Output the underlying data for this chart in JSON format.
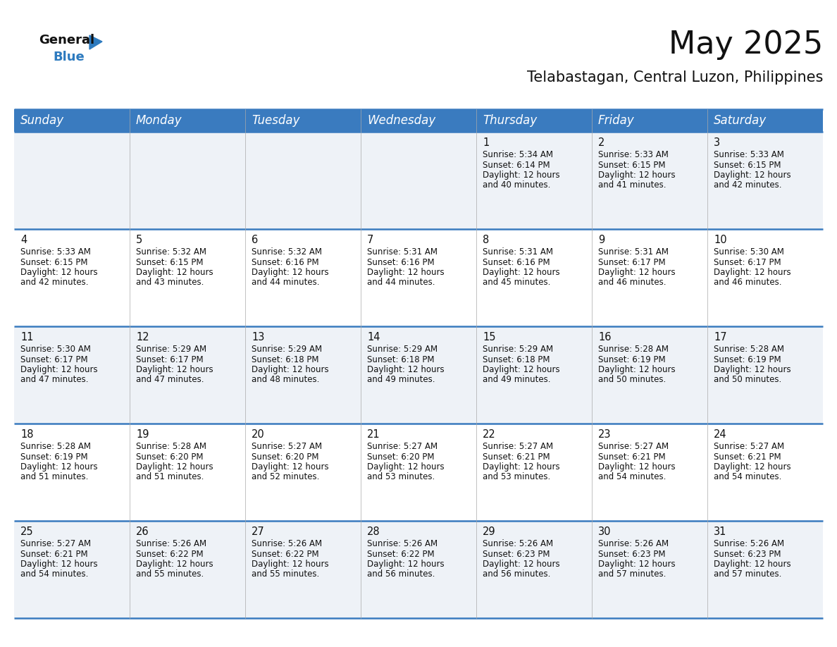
{
  "title": "May 2025",
  "subtitle": "Telabastagan, Central Luzon, Philippines",
  "header_bg": "#3a7bbf",
  "header_text": "#ffffff",
  "cell_bg_odd": "#eef2f7",
  "cell_bg_even": "#ffffff",
  "border_color": "#3a7bbf",
  "sep_color": "#aaaaaa",
  "day_headers": [
    "Sunday",
    "Monday",
    "Tuesday",
    "Wednesday",
    "Thursday",
    "Friday",
    "Saturday"
  ],
  "title_fontsize": 32,
  "subtitle_fontsize": 15,
  "header_fontsize": 12,
  "day_num_fontsize": 10.5,
  "cell_fontsize": 8.5,
  "logo_general_color": "#111111",
  "logo_blue_color": "#2e7bbf",
  "logo_triangle_color": "#2e7bbf",
  "calendar": [
    [
      null,
      null,
      null,
      null,
      {
        "day": 1,
        "sunrise": "5:34 AM",
        "sunset": "6:14 PM",
        "daylight": "12 hours and 40 minutes"
      },
      {
        "day": 2,
        "sunrise": "5:33 AM",
        "sunset": "6:15 PM",
        "daylight": "12 hours and 41 minutes"
      },
      {
        "day": 3,
        "sunrise": "5:33 AM",
        "sunset": "6:15 PM",
        "daylight": "12 hours and 42 minutes"
      }
    ],
    [
      {
        "day": 4,
        "sunrise": "5:33 AM",
        "sunset": "6:15 PM",
        "daylight": "12 hours and 42 minutes"
      },
      {
        "day": 5,
        "sunrise": "5:32 AM",
        "sunset": "6:15 PM",
        "daylight": "12 hours and 43 minutes"
      },
      {
        "day": 6,
        "sunrise": "5:32 AM",
        "sunset": "6:16 PM",
        "daylight": "12 hours and 44 minutes"
      },
      {
        "day": 7,
        "sunrise": "5:31 AM",
        "sunset": "6:16 PM",
        "daylight": "12 hours and 44 minutes"
      },
      {
        "day": 8,
        "sunrise": "5:31 AM",
        "sunset": "6:16 PM",
        "daylight": "12 hours and 45 minutes"
      },
      {
        "day": 9,
        "sunrise": "5:31 AM",
        "sunset": "6:17 PM",
        "daylight": "12 hours and 46 minutes"
      },
      {
        "day": 10,
        "sunrise": "5:30 AM",
        "sunset": "6:17 PM",
        "daylight": "12 hours and 46 minutes"
      }
    ],
    [
      {
        "day": 11,
        "sunrise": "5:30 AM",
        "sunset": "6:17 PM",
        "daylight": "12 hours and 47 minutes"
      },
      {
        "day": 12,
        "sunrise": "5:29 AM",
        "sunset": "6:17 PM",
        "daylight": "12 hours and 47 minutes"
      },
      {
        "day": 13,
        "sunrise": "5:29 AM",
        "sunset": "6:18 PM",
        "daylight": "12 hours and 48 minutes"
      },
      {
        "day": 14,
        "sunrise": "5:29 AM",
        "sunset": "6:18 PM",
        "daylight": "12 hours and 49 minutes"
      },
      {
        "day": 15,
        "sunrise": "5:29 AM",
        "sunset": "6:18 PM",
        "daylight": "12 hours and 49 minutes"
      },
      {
        "day": 16,
        "sunrise": "5:28 AM",
        "sunset": "6:19 PM",
        "daylight": "12 hours and 50 minutes"
      },
      {
        "day": 17,
        "sunrise": "5:28 AM",
        "sunset": "6:19 PM",
        "daylight": "12 hours and 50 minutes"
      }
    ],
    [
      {
        "day": 18,
        "sunrise": "5:28 AM",
        "sunset": "6:19 PM",
        "daylight": "12 hours and 51 minutes"
      },
      {
        "day": 19,
        "sunrise": "5:28 AM",
        "sunset": "6:20 PM",
        "daylight": "12 hours and 51 minutes"
      },
      {
        "day": 20,
        "sunrise": "5:27 AM",
        "sunset": "6:20 PM",
        "daylight": "12 hours and 52 minutes"
      },
      {
        "day": 21,
        "sunrise": "5:27 AM",
        "sunset": "6:20 PM",
        "daylight": "12 hours and 53 minutes"
      },
      {
        "day": 22,
        "sunrise": "5:27 AM",
        "sunset": "6:21 PM",
        "daylight": "12 hours and 53 minutes"
      },
      {
        "day": 23,
        "sunrise": "5:27 AM",
        "sunset": "6:21 PM",
        "daylight": "12 hours and 54 minutes"
      },
      {
        "day": 24,
        "sunrise": "5:27 AM",
        "sunset": "6:21 PM",
        "daylight": "12 hours and 54 minutes"
      }
    ],
    [
      {
        "day": 25,
        "sunrise": "5:27 AM",
        "sunset": "6:21 PM",
        "daylight": "12 hours and 54 minutes"
      },
      {
        "day": 26,
        "sunrise": "5:26 AM",
        "sunset": "6:22 PM",
        "daylight": "12 hours and 55 minutes"
      },
      {
        "day": 27,
        "sunrise": "5:26 AM",
        "sunset": "6:22 PM",
        "daylight": "12 hours and 55 minutes"
      },
      {
        "day": 28,
        "sunrise": "5:26 AM",
        "sunset": "6:22 PM",
        "daylight": "12 hours and 56 minutes"
      },
      {
        "day": 29,
        "sunrise": "5:26 AM",
        "sunset": "6:23 PM",
        "daylight": "12 hours and 56 minutes"
      },
      {
        "day": 30,
        "sunrise": "5:26 AM",
        "sunset": "6:23 PM",
        "daylight": "12 hours and 57 minutes"
      },
      {
        "day": 31,
        "sunrise": "5:26 AM",
        "sunset": "6:23 PM",
        "daylight": "12 hours and 57 minutes"
      }
    ]
  ]
}
